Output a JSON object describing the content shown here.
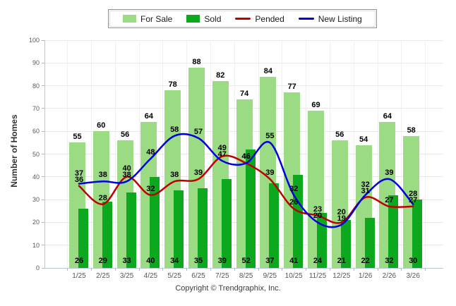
{
  "footer": {
    "text": "Copyright © Trendgraphix, Inc."
  },
  "chart_data": {
    "type": "combo",
    "title": "",
    "categories": [
      "1/25",
      "2/25",
      "3/25",
      "4/25",
      "5/25",
      "6/25",
      "7/25",
      "8/25",
      "9/25",
      "10/25",
      "11/25",
      "12/25",
      "1/26",
      "2/26",
      "3/26"
    ],
    "series": [
      {
        "name": "For Sale",
        "kind": "bar",
        "color": "#9ADB84",
        "values": [
          55,
          60,
          56,
          64,
          78,
          88,
          82,
          74,
          84,
          77,
          69,
          56,
          54,
          64,
          58
        ]
      },
      {
        "name": "Sold",
        "kind": "bar",
        "color": "#0CA81E",
        "values": [
          26,
          29,
          33,
          40,
          34,
          35,
          39,
          52,
          37,
          41,
          24,
          21,
          22,
          32,
          30
        ]
      },
      {
        "name": "Pended",
        "kind": "line",
        "color": "#C00000",
        "values": [
          36,
          28,
          40,
          32,
          38,
          39,
          49,
          46,
          39,
          26,
          23,
          20,
          31,
          27,
          27
        ]
      },
      {
        "name": "New Listing",
        "kind": "line",
        "color": "#0000E0",
        "values": [
          37,
          38,
          38,
          48,
          58,
          57,
          47,
          46,
          55,
          32,
          20,
          19,
          32,
          39,
          28
        ]
      }
    ],
    "xlabel": "",
    "ylabel": "Number of Homes",
    "ylim": [
      0,
      100
    ],
    "y_ticks": [
      0,
      10,
      20,
      30,
      40,
      50,
      60,
      70,
      80,
      90,
      100
    ],
    "grid": true,
    "legend_position": "top"
  }
}
